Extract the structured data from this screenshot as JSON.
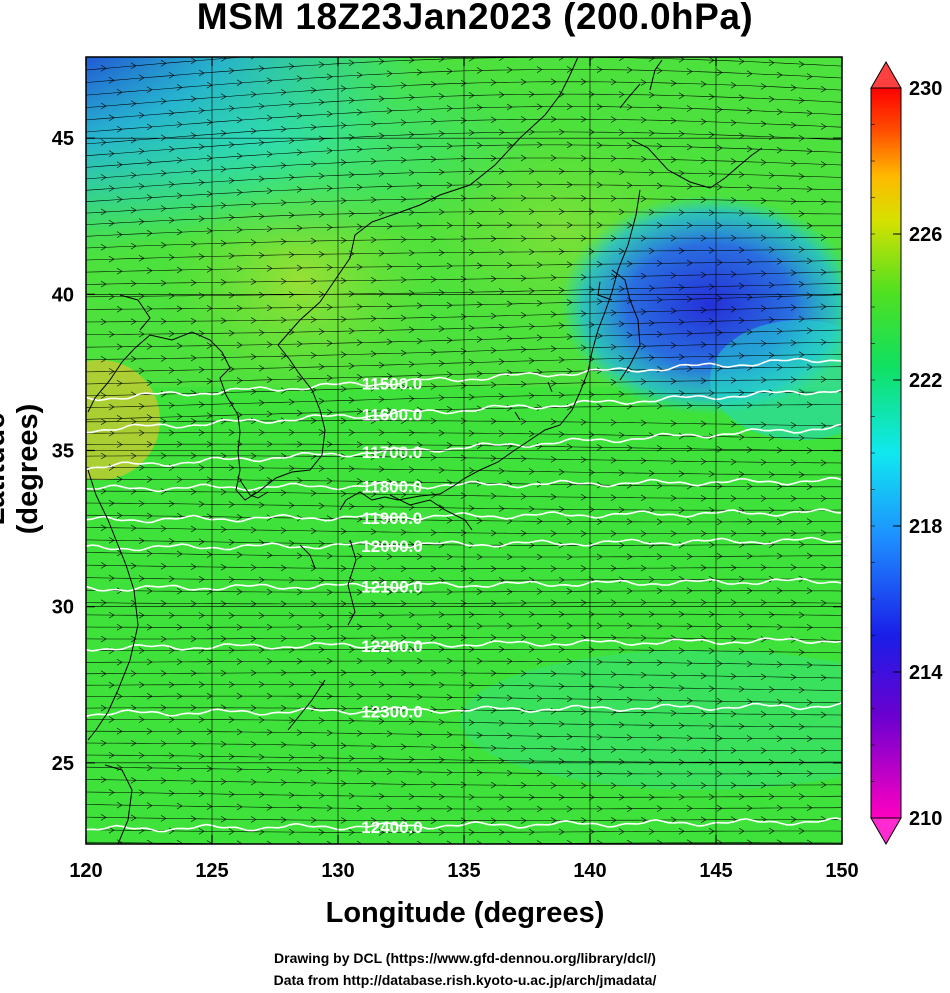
{
  "title": "MSM 18Z23Jan2023 (200.0hPa)",
  "xlabel": "Longitude (degrees)",
  "ylabel": "Latitude  (degrees)",
  "footer_line1": "Drawing by DCL (https://www.gfd-dennou.org/library/dcl/)",
  "footer_line2": "Data from http://database.rish.kyoto-u.ac.jp/arch/jmadata/",
  "x_ticks": [
    "120",
    "125",
    "130",
    "135",
    "140",
    "145",
    "150"
  ],
  "y_ticks": [
    "25",
    "30",
    "35",
    "40",
    "45"
  ],
  "x_range": [
    120,
    150
  ],
  "y_range": [
    22.4,
    47.6
  ],
  "colorbar": {
    "range": [
      210,
      230
    ],
    "tick_labels": [
      "230",
      "226",
      "222",
      "218",
      "214",
      "210"
    ],
    "tick_values": [
      230,
      226,
      222,
      218,
      214,
      210
    ]
  },
  "contours": [
    {
      "value": 11500.0,
      "label": "11500.0",
      "lat": 37.3
    },
    {
      "value": 11600.0,
      "label": "11600.0",
      "lat": 36.3
    },
    {
      "value": 11700.0,
      "label": "11700.0",
      "lat": 35.1
    },
    {
      "value": 11800.0,
      "label": "11800.0",
      "lat": 33.9
    },
    {
      "value": 11900.0,
      "label": "11900.0",
      "lat": 32.9
    },
    {
      "value": 12000.0,
      "label": "12000.0",
      "lat": 32.0
    },
    {
      "value": 12100.0,
      "label": "12100.0",
      "lat": 30.7
    },
    {
      "value": 12200.0,
      "label": "12200.0",
      "lat": 28.8
    },
    {
      "value": 12300.0,
      "label": "12300.0",
      "lat": 26.7
    },
    {
      "value": 12400.0,
      "label": "12400.0",
      "lat": 23.0
    }
  ],
  "colors": {
    "field_base": "#3fe03a",
    "cold_core": "#2a3ad8",
    "cyan": "#1de6d8",
    "warm": "#b8e43a",
    "contour": "#ffffff",
    "wind": "#000000"
  }
}
